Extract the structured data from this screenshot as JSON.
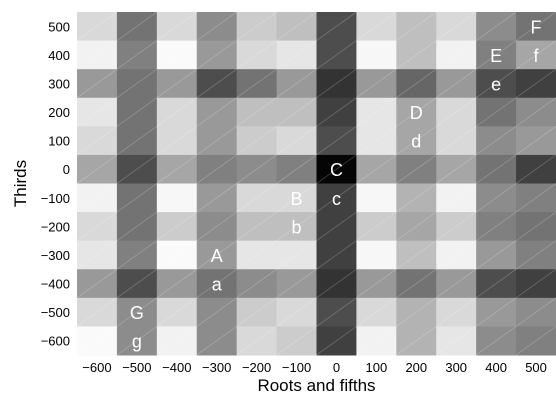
{
  "chart_data": {
    "type": "heatmap",
    "xlabel": "Roots and fifths",
    "ylabel": "Thirds",
    "x_ticks": [
      -600,
      -500,
      -400,
      -300,
      -200,
      -100,
      0,
      100,
      200,
      300,
      400,
      500
    ],
    "y_ticks": [
      500,
      400,
      300,
      200,
      100,
      0,
      -100,
      -200,
      -300,
      -400,
      -500,
      -600
    ],
    "x_tick_labels": [
      "−600",
      "−500",
      "−400",
      "−300",
      "−200",
      "−100",
      "0",
      "100",
      "200",
      "300",
      "400",
      "500"
    ],
    "y_tick_labels": [
      "500",
      "400",
      "300",
      "200",
      "100",
      "0",
      "−100",
      "−200",
      "−300",
      "−400",
      "−500",
      "−600"
    ],
    "xlim": [
      -650,
      550
    ],
    "ylim": [
      -650,
      550
    ],
    "grid": false,
    "colormap": "grayscale (darker = higher value)",
    "cell_intensity_scale": "0 = white, 1 = black",
    "cell_values": [
      [
        0.15,
        0.55,
        0.15,
        0.45,
        0.2,
        0.25,
        0.7,
        0.15,
        0.25,
        0.15,
        0.45,
        0.55
      ],
      [
        0.05,
        0.5,
        0.02,
        0.4,
        0.15,
        0.1,
        0.7,
        0.03,
        0.25,
        0.05,
        0.5,
        0.35
      ],
      [
        0.4,
        0.55,
        0.4,
        0.7,
        0.55,
        0.4,
        0.8,
        0.4,
        0.6,
        0.4,
        0.7,
        0.75
      ],
      [
        0.1,
        0.55,
        0.15,
        0.4,
        0.25,
        0.25,
        0.75,
        0.1,
        0.35,
        0.15,
        0.55,
        0.45
      ],
      [
        0.15,
        0.55,
        0.15,
        0.4,
        0.2,
        0.15,
        0.7,
        0.1,
        0.35,
        0.15,
        0.45,
        0.4
      ],
      [
        0.35,
        0.7,
        0.35,
        0.5,
        0.45,
        0.5,
        0.98,
        0.35,
        0.5,
        0.35,
        0.55,
        0.75
      ],
      [
        0.05,
        0.55,
        0.03,
        0.4,
        0.15,
        0.15,
        0.75,
        0.03,
        0.3,
        0.05,
        0.45,
        0.5
      ],
      [
        0.15,
        0.55,
        0.2,
        0.45,
        0.25,
        0.25,
        0.75,
        0.2,
        0.35,
        0.2,
        0.5,
        0.55
      ],
      [
        0.1,
        0.5,
        0.02,
        0.4,
        0.1,
        0.1,
        0.75,
        0.03,
        0.25,
        0.05,
        0.4,
        0.5
      ],
      [
        0.4,
        0.7,
        0.4,
        0.55,
        0.45,
        0.4,
        0.8,
        0.4,
        0.55,
        0.4,
        0.7,
        0.75
      ],
      [
        0.15,
        0.45,
        0.15,
        0.45,
        0.2,
        0.15,
        0.7,
        0.15,
        0.3,
        0.15,
        0.4,
        0.45
      ],
      [
        0.02,
        0.45,
        0.05,
        0.45,
        0.15,
        0.2,
        0.75,
        0.05,
        0.3,
        0.1,
        0.45,
        0.5
      ]
    ],
    "point_labels": [
      {
        "text": "F",
        "x": 500,
        "y": 500
      },
      {
        "text": "E",
        "x": 400,
        "y": 400
      },
      {
        "text": "f",
        "x": 500,
        "y": 400
      },
      {
        "text": "e",
        "x": 400,
        "y": 300
      },
      {
        "text": "D",
        "x": 200,
        "y": 200
      },
      {
        "text": "d",
        "x": 200,
        "y": 100
      },
      {
        "text": "C",
        "x": 0,
        "y": 0
      },
      {
        "text": "B",
        "x": -100,
        "y": -100
      },
      {
        "text": "c",
        "x": 0,
        "y": -100
      },
      {
        "text": "b",
        "x": -100,
        "y": -200
      },
      {
        "text": "A",
        "x": -300,
        "y": -300
      },
      {
        "text": "a",
        "x": -300,
        "y": -400
      },
      {
        "text": "G",
        "x": -500,
        "y": -500
      },
      {
        "text": "g",
        "x": -500,
        "y": -600
      }
    ]
  }
}
